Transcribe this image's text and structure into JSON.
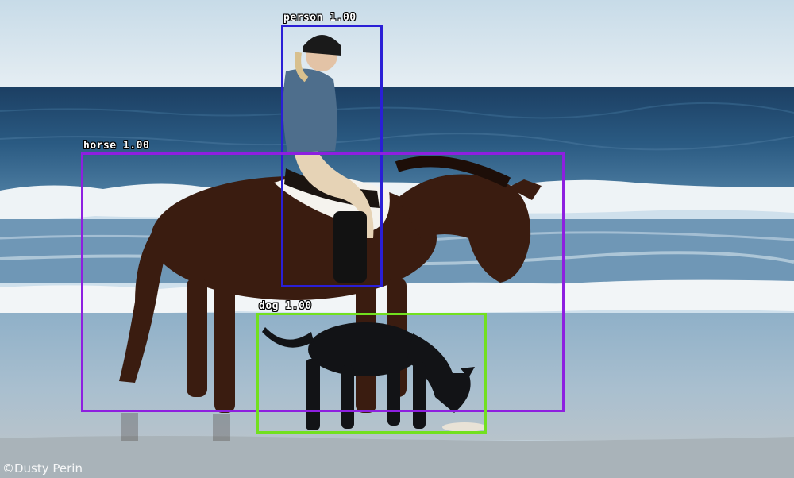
{
  "image": {
    "description": "Rider on a dark brown horse walking along a beach at the surf line, with a black dog sniffing the sand in front",
    "credit": "©Dusty Perin"
  },
  "detections": [
    {
      "label": "person 1.00",
      "color": "#2a1fd6"
    },
    {
      "label": "horse 1.00",
      "color": "#8e1fe0"
    },
    {
      "label": "dog 1.00",
      "color": "#72e01f"
    }
  ],
  "colors": {
    "sky": "#dbe7ef",
    "sea": "#1f4a6e",
    "foam": "#f1f5f7",
    "sand": "#a8b8c4",
    "horse": "#3a1c10",
    "dog": "#121316"
  }
}
